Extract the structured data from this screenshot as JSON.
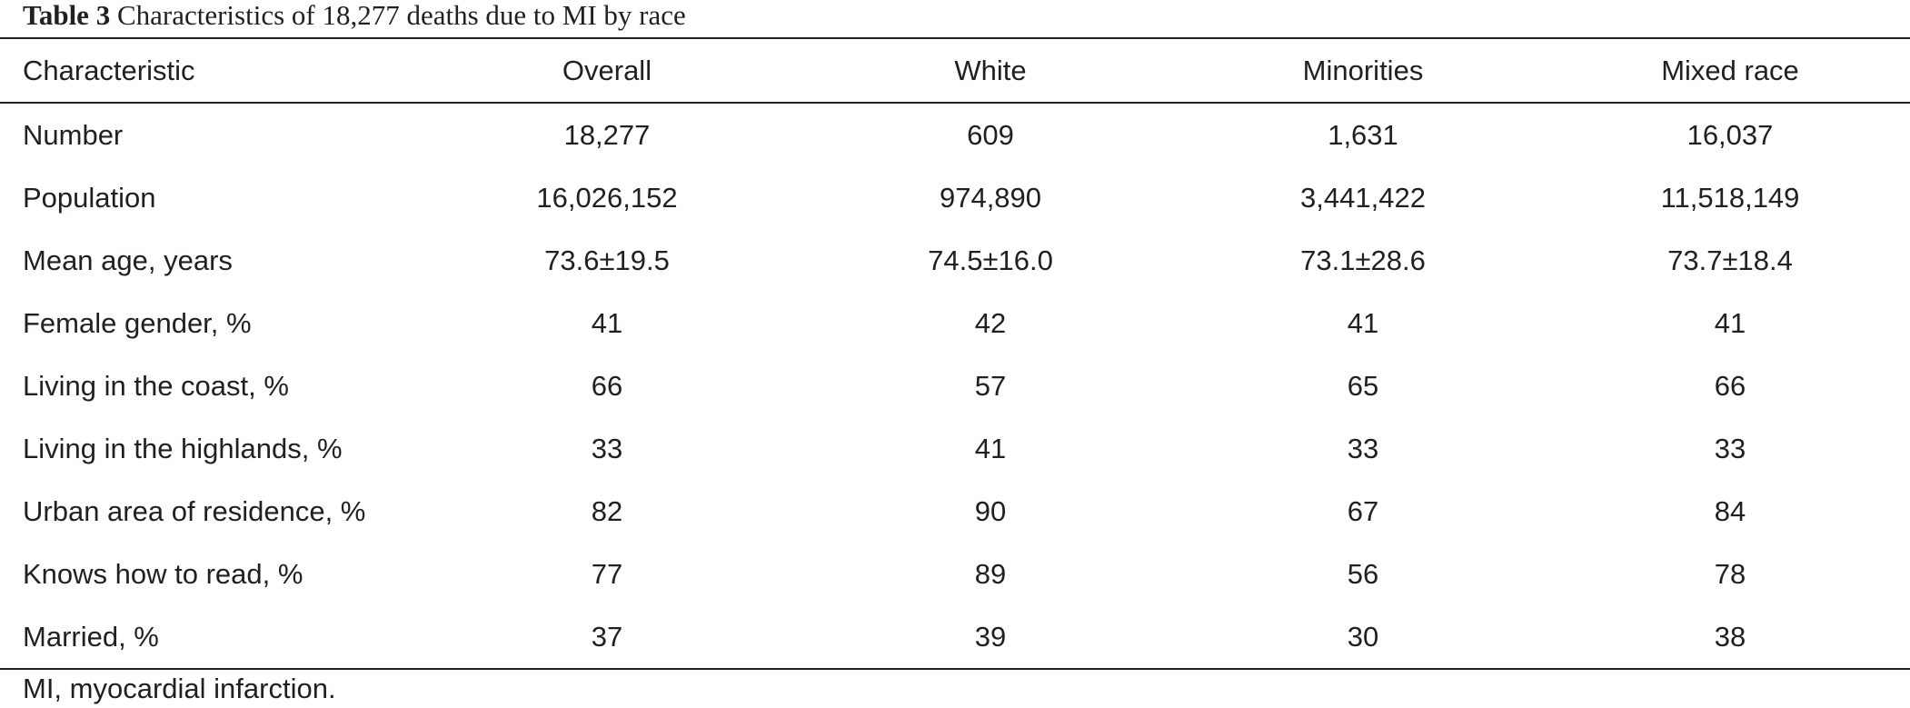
{
  "caption": {
    "label": "Table 3",
    "title": "Characteristics of 18,277 deaths due to MI by race"
  },
  "table": {
    "headers": [
      "Characteristic",
      "Overall",
      "White",
      "Minorities",
      "Mixed race"
    ],
    "rows": [
      [
        "Number",
        "18,277",
        "609",
        "1,631",
        "16,037"
      ],
      [
        "Population",
        "16,026,152",
        "974,890",
        "3,441,422",
        "11,518,149"
      ],
      [
        "Mean age, years",
        "73.6±19.5",
        "74.5±16.0",
        "73.1±28.6",
        "73.7±18.4"
      ],
      [
        "Female gender, %",
        "41",
        "42",
        "41",
        "41"
      ],
      [
        "Living in the coast, %",
        "66",
        "57",
        "65",
        "66"
      ],
      [
        "Living in the highlands, %",
        "33",
        "41",
        "33",
        "33"
      ],
      [
        "Urban area of residence, %",
        "82",
        "90",
        "67",
        "84"
      ],
      [
        "Knows how to read, %",
        "77",
        "89",
        "56",
        "78"
      ],
      [
        "Married, %",
        "37",
        "39",
        "30",
        "38"
      ]
    ]
  },
  "footnote": "MI, myocardial infarction."
}
